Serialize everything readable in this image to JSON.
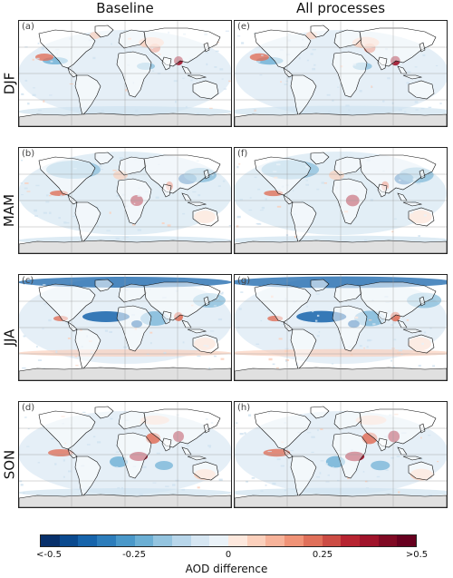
{
  "columns": [
    "Baseline",
    "All processes"
  ],
  "rows": [
    "DJF",
    "MAM",
    "JJA",
    "SON"
  ],
  "panel_labels": [
    [
      "(a)",
      "(e)"
    ],
    [
      "(b)",
      "(f)"
    ],
    [
      "(c)",
      "(g)"
    ],
    [
      "(d)",
      "(h)"
    ]
  ],
  "colorbar": {
    "label": "AOD difference",
    "ticks": [
      "<-0.5",
      "-0.25",
      "0",
      "0.25",
      ">0.5"
    ],
    "colors": [
      "#08306b",
      "#0b4a8f",
      "#1764ab",
      "#2d7dbb",
      "#4a98c9",
      "#6cafd4",
      "#94c4df",
      "#b8d6ea",
      "#d6e6f2",
      "#eaf2f8",
      "#fde8dd",
      "#fbd0bc",
      "#f7b39a",
      "#f09377",
      "#e0705a",
      "#cc4c44",
      "#b72431",
      "#a0142b",
      "#800a24",
      "#67001f"
    ]
  },
  "colors": {
    "land": "#ffffff",
    "antarctica": "#e0e0e0",
    "coast": "#111111",
    "grid": "#9a9a9a",
    "neg_light": "#cfe2f0",
    "neg_mid": "#6cafd4",
    "neg_dark": "#1764ab",
    "pos_light": "#fbd0bc",
    "pos_mid": "#e0705a",
    "pos_dark": "#a0142b"
  }
}
